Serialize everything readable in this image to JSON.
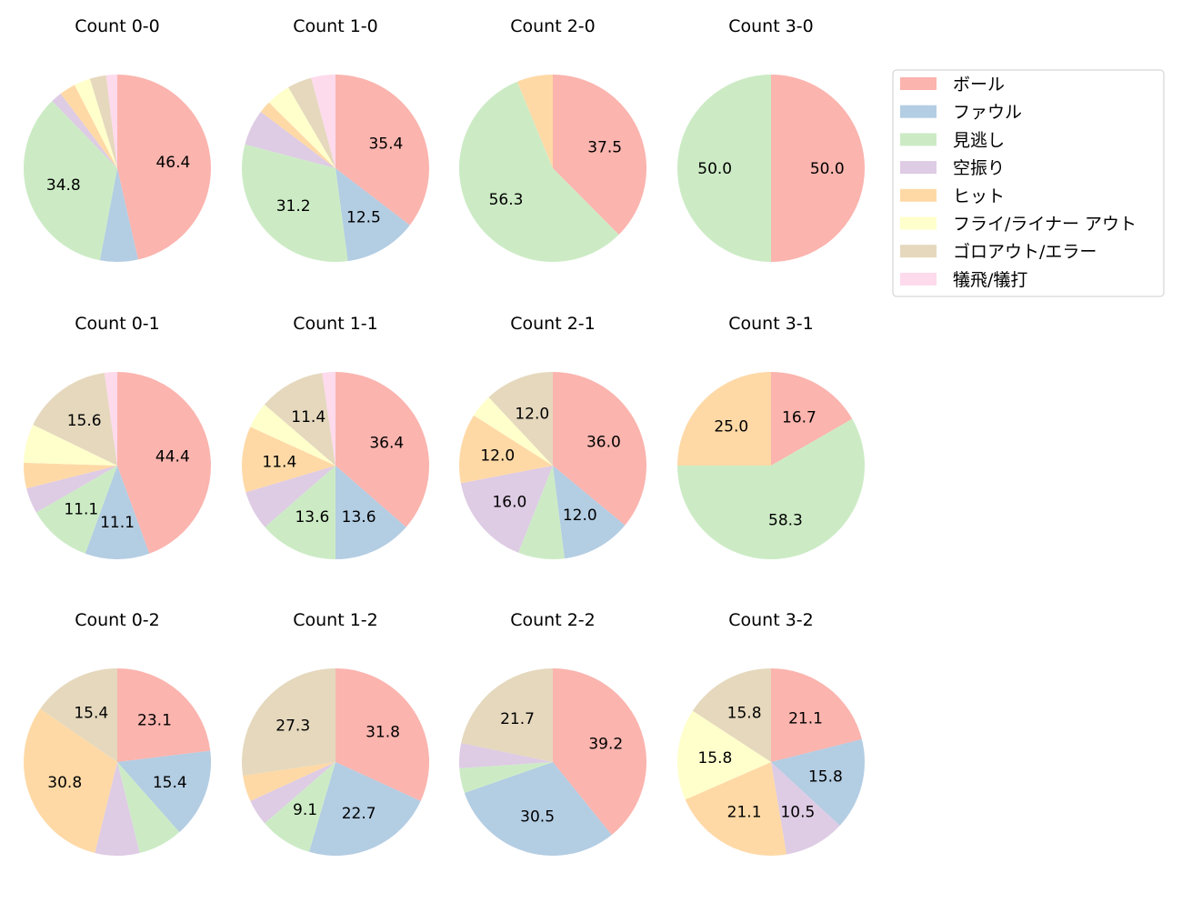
{
  "chart_data": {
    "type": "pie",
    "categories": [
      "ボール",
      "ファウル",
      "見逃し",
      "空振り",
      "ヒット",
      "フライ/ライナー アウト",
      "ゴロアウト/エラー",
      "犠飛/犠打"
    ],
    "colors": [
      "#fbb4ae",
      "#b3cde3",
      "#ccebc5",
      "#decbe4",
      "#fed9a6",
      "#ffffcc",
      "#e5d8bd",
      "#fddaec"
    ],
    "start_angle_deg": 90,
    "direction": "clockwise",
    "label_threshold_percent": 8,
    "legend_placement": "top-right",
    "charts": [
      {
        "title": "Count 0-0",
        "values": [
          46.2,
          6.5,
          34.6,
          1.9,
          2.8,
          2.8,
          2.8,
          1.9
        ]
      },
      {
        "title": "Count 1-0",
        "values": [
          35.4,
          12.5,
          31.2,
          6.2,
          2.1,
          4.2,
          4.2,
          4.2
        ]
      },
      {
        "title": "Count 2-0",
        "values": [
          37.5,
          0,
          56.2,
          0,
          6.2,
          0,
          0,
          0
        ]
      },
      {
        "title": "Count 3-0",
        "values": [
          50.0,
          0,
          50.0,
          0,
          0,
          0,
          0,
          0
        ]
      },
      {
        "title": "Count 0-1",
        "values": [
          44.4,
          11.1,
          11.1,
          4.4,
          4.4,
          6.7,
          15.6,
          2.2
        ]
      },
      {
        "title": "Count 1-1",
        "values": [
          36.4,
          13.6,
          13.6,
          6.8,
          11.4,
          4.5,
          11.4,
          2.3
        ]
      },
      {
        "title": "Count 2-1",
        "values": [
          36.0,
          12.0,
          8.0,
          16.0,
          12.0,
          4.0,
          12.0,
          0
        ]
      },
      {
        "title": "Count 3-1",
        "values": [
          16.7,
          0,
          58.3,
          0,
          25.0,
          0,
          0,
          0
        ]
      },
      {
        "title": "Count 0-2",
        "values": [
          23.1,
          15.4,
          7.7,
          7.7,
          30.8,
          0,
          15.4,
          0
        ]
      },
      {
        "title": "Count 1-2",
        "values": [
          31.8,
          22.7,
          9.1,
          4.5,
          4.5,
          0,
          27.3,
          0
        ]
      },
      {
        "title": "Count 2-2",
        "values": [
          39.1,
          30.4,
          4.3,
          4.3,
          0,
          0,
          21.7,
          0
        ]
      },
      {
        "title": "Count 3-2",
        "values": [
          21.1,
          15.8,
          0,
          10.5,
          21.1,
          15.8,
          15.8,
          0
        ]
      }
    ]
  }
}
